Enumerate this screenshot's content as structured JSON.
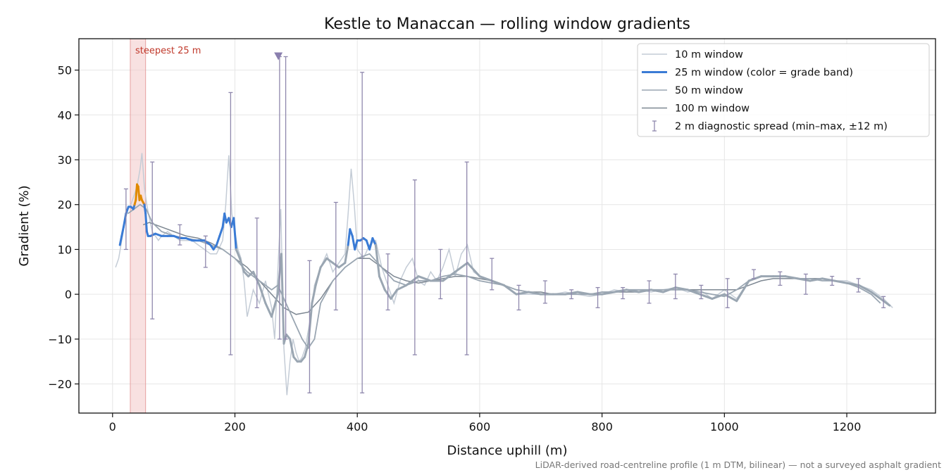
{
  "chart_data": {
    "type": "line",
    "title": "Kestle to Manaccan — rolling window gradients",
    "xlabel": "Distance uphill (m)",
    "ylabel": "Gradient (%)",
    "xlim": [
      -55,
      1345
    ],
    "ylim": [
      -26.5,
      57
    ],
    "xticks": [
      0,
      200,
      400,
      600,
      800,
      1000,
      1200
    ],
    "yticks": [
      -20,
      -10,
      0,
      10,
      20,
      30,
      40,
      50
    ],
    "grid": true,
    "legend_position": "top-right",
    "footnote": "LiDAR-derived road-centreline profile (1 m DTM, bilinear) — not a surveyed asphalt gradient",
    "steepest": {
      "label": "steepest 25 m",
      "x_range": [
        29,
        54
      ],
      "marker_x": 271,
      "marker_y": 53
    },
    "colors": {
      "w10": "#c4ccd6",
      "w25_band": "#3a7bd5",
      "w25_peak": "#e08a00",
      "w25_low": "#9aa6b2",
      "w50": "#9aa6b2",
      "w100": "#7d8792",
      "errorbar": "#8f88ad",
      "steepest_shade": "#f2c4c4"
    },
    "legend": [
      {
        "label": "10 m window",
        "key": "w10"
      },
      {
        "label": "25 m window (color = grade band)",
        "key": "w25"
      },
      {
        "label": "50 m window",
        "key": "w50"
      },
      {
        "label": "100 m window",
        "key": "w100"
      },
      {
        "label": "2 m diagnostic spread (min–max, ±12 m)",
        "key": "err"
      }
    ],
    "series": [
      {
        "key": "w10",
        "x": [
          5,
          10,
          15,
          20,
          25,
          30,
          35,
          40,
          45,
          48,
          52,
          56,
          60,
          65,
          70,
          75,
          80,
          90,
          100,
          110,
          120,
          130,
          140,
          150,
          160,
          170,
          180,
          185,
          190,
          195,
          200,
          205,
          210,
          215,
          220,
          230,
          240,
          250,
          260,
          265,
          270,
          275,
          280,
          285,
          290,
          295,
          300,
          305,
          310,
          315,
          320,
          325,
          330,
          340,
          350,
          360,
          370,
          380,
          385,
          390,
          395,
          400,
          410,
          420,
          430,
          440,
          450,
          460,
          470,
          480,
          490,
          500,
          510,
          520,
          530,
          540,
          550,
          560,
          570,
          580,
          590,
          600,
          620,
          640,
          660,
          680,
          700,
          720,
          740,
          760,
          780,
          800,
          820,
          840,
          860,
          880,
          900,
          920,
          940,
          960,
          980,
          1000,
          1020,
          1040,
          1060,
          1080,
          1100,
          1120,
          1140,
          1160,
          1180,
          1200,
          1220,
          1240,
          1260,
          1275
        ],
        "y": [
          6,
          8,
          12,
          16,
          19,
          20,
          22,
          24,
          28,
          31.5,
          24,
          20,
          17,
          14,
          13,
          12,
          13,
          14,
          13,
          12,
          12,
          12,
          11,
          10,
          9,
          9,
          12,
          20,
          31,
          18,
          14,
          10,
          8,
          3,
          -5,
          1,
          -2,
          3,
          -3,
          -10,
          5,
          19,
          -12,
          -22.5,
          -15,
          -10,
          -13,
          -15,
          -14,
          -12,
          -8,
          -4,
          2,
          6,
          9,
          5,
          7,
          9,
          18,
          28,
          20,
          10,
          8,
          11,
          12,
          6,
          2,
          -2,
          3,
          6,
          8,
          3,
          2,
          5,
          3,
          6,
          10,
          4,
          9,
          11,
          5,
          4,
          3,
          2,
          0,
          0,
          0,
          0,
          0.5,
          0,
          -0.5,
          0,
          1,
          0.5,
          1,
          0.5,
          1,
          1.5,
          0.5,
          1,
          -1,
          1,
          -1,
          3,
          4,
          4,
          4,
          3.5,
          3,
          3.5,
          3,
          3,
          2,
          1,
          -1,
          -3
        ]
      },
      {
        "key": "w25",
        "x": [
          12,
          15,
          18,
          22,
          26,
          30,
          34,
          36,
          38,
          40,
          42,
          44,
          46,
          48,
          50,
          52,
          54,
          56,
          58,
          62,
          70,
          80,
          90,
          100,
          110,
          120,
          130,
          140,
          150,
          160,
          165,
          170,
          175,
          180,
          183,
          186,
          190,
          194,
          198,
          202,
          208,
          215,
          222,
          230,
          240,
          250,
          260,
          270,
          276,
          280,
          284,
          290,
          296,
          302,
          308,
          314,
          320,
          326,
          332,
          340,
          350,
          360,
          370,
          380,
          385,
          388,
          392,
          396,
          400,
          405,
          410,
          415,
          420,
          425,
          430,
          436,
          445,
          455,
          465,
          480,
          500,
          520,
          540,
          560,
          580,
          600,
          620,
          640,
          660,
          680,
          700,
          720,
          740,
          760,
          780,
          800,
          820,
          840,
          860,
          880,
          900,
          920,
          940,
          960,
          980,
          1000,
          1020,
          1040,
          1060,
          1080,
          1100,
          1120,
          1140,
          1160,
          1180,
          1200,
          1220,
          1240,
          1260,
          1270
        ],
        "y": [
          11,
          13,
          15,
          18,
          19.5,
          19.5,
          19,
          20,
          21,
          24.5,
          24,
          21,
          22,
          21,
          20.5,
          20,
          18,
          14,
          13,
          13,
          13.5,
          13,
          13,
          13,
          12.5,
          12.5,
          12,
          12,
          12,
          11,
          10,
          11,
          13,
          15,
          18,
          16,
          17,
          15,
          17,
          10,
          8,
          5,
          4,
          5,
          2,
          -2,
          -5,
          0,
          9,
          -11,
          -9,
          -10,
          -14,
          -15,
          -15,
          -14,
          -11,
          -2,
          2,
          6,
          8,
          7,
          6,
          7,
          11,
          14.5,
          13,
          10,
          12,
          12,
          12.5,
          12,
          10,
          12.5,
          11,
          4,
          1,
          -1,
          1,
          2,
          4,
          3,
          3,
          5,
          7,
          4,
          3,
          2,
          0,
          0.5,
          0,
          0,
          0,
          0.5,
          0,
          0,
          0.5,
          1,
          0.5,
          1,
          0.5,
          1.5,
          1,
          0,
          -1,
          0,
          -1.5,
          3,
          4,
          4,
          4,
          3.5,
          3,
          3.5,
          3,
          2.5,
          2,
          0.5,
          -1.5,
          -2.5
        ]
      },
      {
        "key": "w50",
        "x": [
          25,
          35,
          45,
          55,
          65,
          80,
          100,
          120,
          140,
          160,
          180,
          200,
          220,
          240,
          260,
          270,
          280,
          290,
          300,
          310,
          320,
          330,
          340,
          360,
          380,
          400,
          420,
          440,
          460,
          480,
          500,
          520,
          540,
          560,
          580,
          600,
          620,
          640,
          660,
          680,
          700,
          720,
          740,
          760,
          780,
          800,
          820,
          840,
          860,
          880,
          900,
          920,
          940,
          960,
          980,
          1000,
          1020,
          1040,
          1060,
          1080,
          1100,
          1120,
          1140,
          1160,
          1180,
          1200,
          1220,
          1240,
          1255
        ],
        "y": [
          18,
          19,
          20,
          19,
          16,
          14,
          13,
          12.5,
          12,
          11,
          10,
          8,
          5,
          3,
          1,
          2,
          -1,
          -4,
          -7,
          -10,
          -12,
          -10,
          -2,
          3,
          6,
          8,
          9,
          6,
          3,
          2,
          3,
          3,
          4,
          4.5,
          4,
          3,
          2.5,
          2,
          1,
          0.5,
          0,
          0,
          0,
          0,
          0,
          0.5,
          0.5,
          1,
          1,
          1,
          1,
          1,
          1,
          0.5,
          0,
          -0.5,
          1,
          3,
          4,
          4,
          4,
          3.5,
          3.5,
          3,
          3,
          2.5,
          1.5,
          0,
          -2
        ]
      },
      {
        "key": "w100",
        "x": [
          50,
          60,
          80,
          100,
          120,
          140,
          160,
          180,
          200,
          220,
          240,
          260,
          280,
          300,
          320,
          340,
          360,
          380,
          400,
          420,
          440,
          460,
          480,
          500,
          520,
          540,
          560,
          580,
          600,
          620,
          640,
          660,
          680,
          700,
          720,
          740,
          760,
          780,
          800,
          820,
          840,
          860,
          880,
          900,
          920,
          940,
          960,
          980,
          1000,
          1020,
          1040,
          1060,
          1080,
          1100,
          1120,
          1140,
          1160,
          1180,
          1200,
          1220
        ],
        "y": [
          15.5,
          16,
          15,
          14,
          13,
          12.5,
          11.5,
          10,
          8,
          6,
          3,
          0,
          -3,
          -4.5,
          -4,
          -1,
          3,
          6,
          8,
          8,
          6,
          4,
          3,
          2.5,
          3,
          3.5,
          4,
          4,
          3.5,
          3,
          2,
          1,
          0.5,
          0.5,
          0,
          0,
          0,
          0,
          0.5,
          0.5,
          0.5,
          0.5,
          1,
          1,
          1,
          1,
          1,
          1,
          1,
          1,
          2,
          3,
          3.5,
          3.5,
          3.5,
          3.5,
          3.5,
          3,
          2.5,
          1.5
        ]
      }
    ],
    "errorbars": [
      {
        "x": 22,
        "lo": 10,
        "hi": 23.5
      },
      {
        "x": 65,
        "lo": -5.5,
        "hi": 29.5
      },
      {
        "x": 110,
        "lo": 11,
        "hi": 15.5
      },
      {
        "x": 152,
        "lo": 6,
        "hi": 13
      },
      {
        "x": 193,
        "lo": -13.5,
        "hi": 45
      },
      {
        "x": 236,
        "lo": -3,
        "hi": 17
      },
      {
        "x": 273,
        "lo": -10,
        "hi": 53
      },
      {
        "x": 283,
        "lo": -10,
        "hi": 53
      },
      {
        "x": 322,
        "lo": -22,
        "hi": 7.5
      },
      {
        "x": 365,
        "lo": -3.5,
        "hi": 20.5
      },
      {
        "x": 408,
        "lo": -22,
        "hi": 49.5
      },
      {
        "x": 450,
        "lo": -3.5,
        "hi": 9
      },
      {
        "x": 494,
        "lo": -13.5,
        "hi": 25.5
      },
      {
        "x": 536,
        "lo": -1,
        "hi": 10
      },
      {
        "x": 579,
        "lo": -13.5,
        "hi": 29.5
      },
      {
        "x": 620,
        "lo": 1,
        "hi": 8
      },
      {
        "x": 664,
        "lo": -3.5,
        "hi": 2
      },
      {
        "x": 707,
        "lo": -2,
        "hi": 3
      },
      {
        "x": 750,
        "lo": -1,
        "hi": 1
      },
      {
        "x": 793,
        "lo": -3,
        "hi": 1.5
      },
      {
        "x": 834,
        "lo": -1,
        "hi": 1.5
      },
      {
        "x": 877,
        "lo": -2,
        "hi": 3
      },
      {
        "x": 920,
        "lo": -1,
        "hi": 4.5
      },
      {
        "x": 962,
        "lo": -1,
        "hi": 2
      },
      {
        "x": 1005,
        "lo": -3,
        "hi": 3.5
      },
      {
        "x": 1048,
        "lo": 3.5,
        "hi": 5.5
      },
      {
        "x": 1091,
        "lo": 2,
        "hi": 5
      },
      {
        "x": 1133,
        "lo": 0,
        "hi": 4.5
      },
      {
        "x": 1176,
        "lo": 2,
        "hi": 4
      },
      {
        "x": 1219,
        "lo": 0.5,
        "hi": 3.5
      },
      {
        "x": 1260,
        "lo": -3,
        "hi": -0.5
      }
    ]
  }
}
